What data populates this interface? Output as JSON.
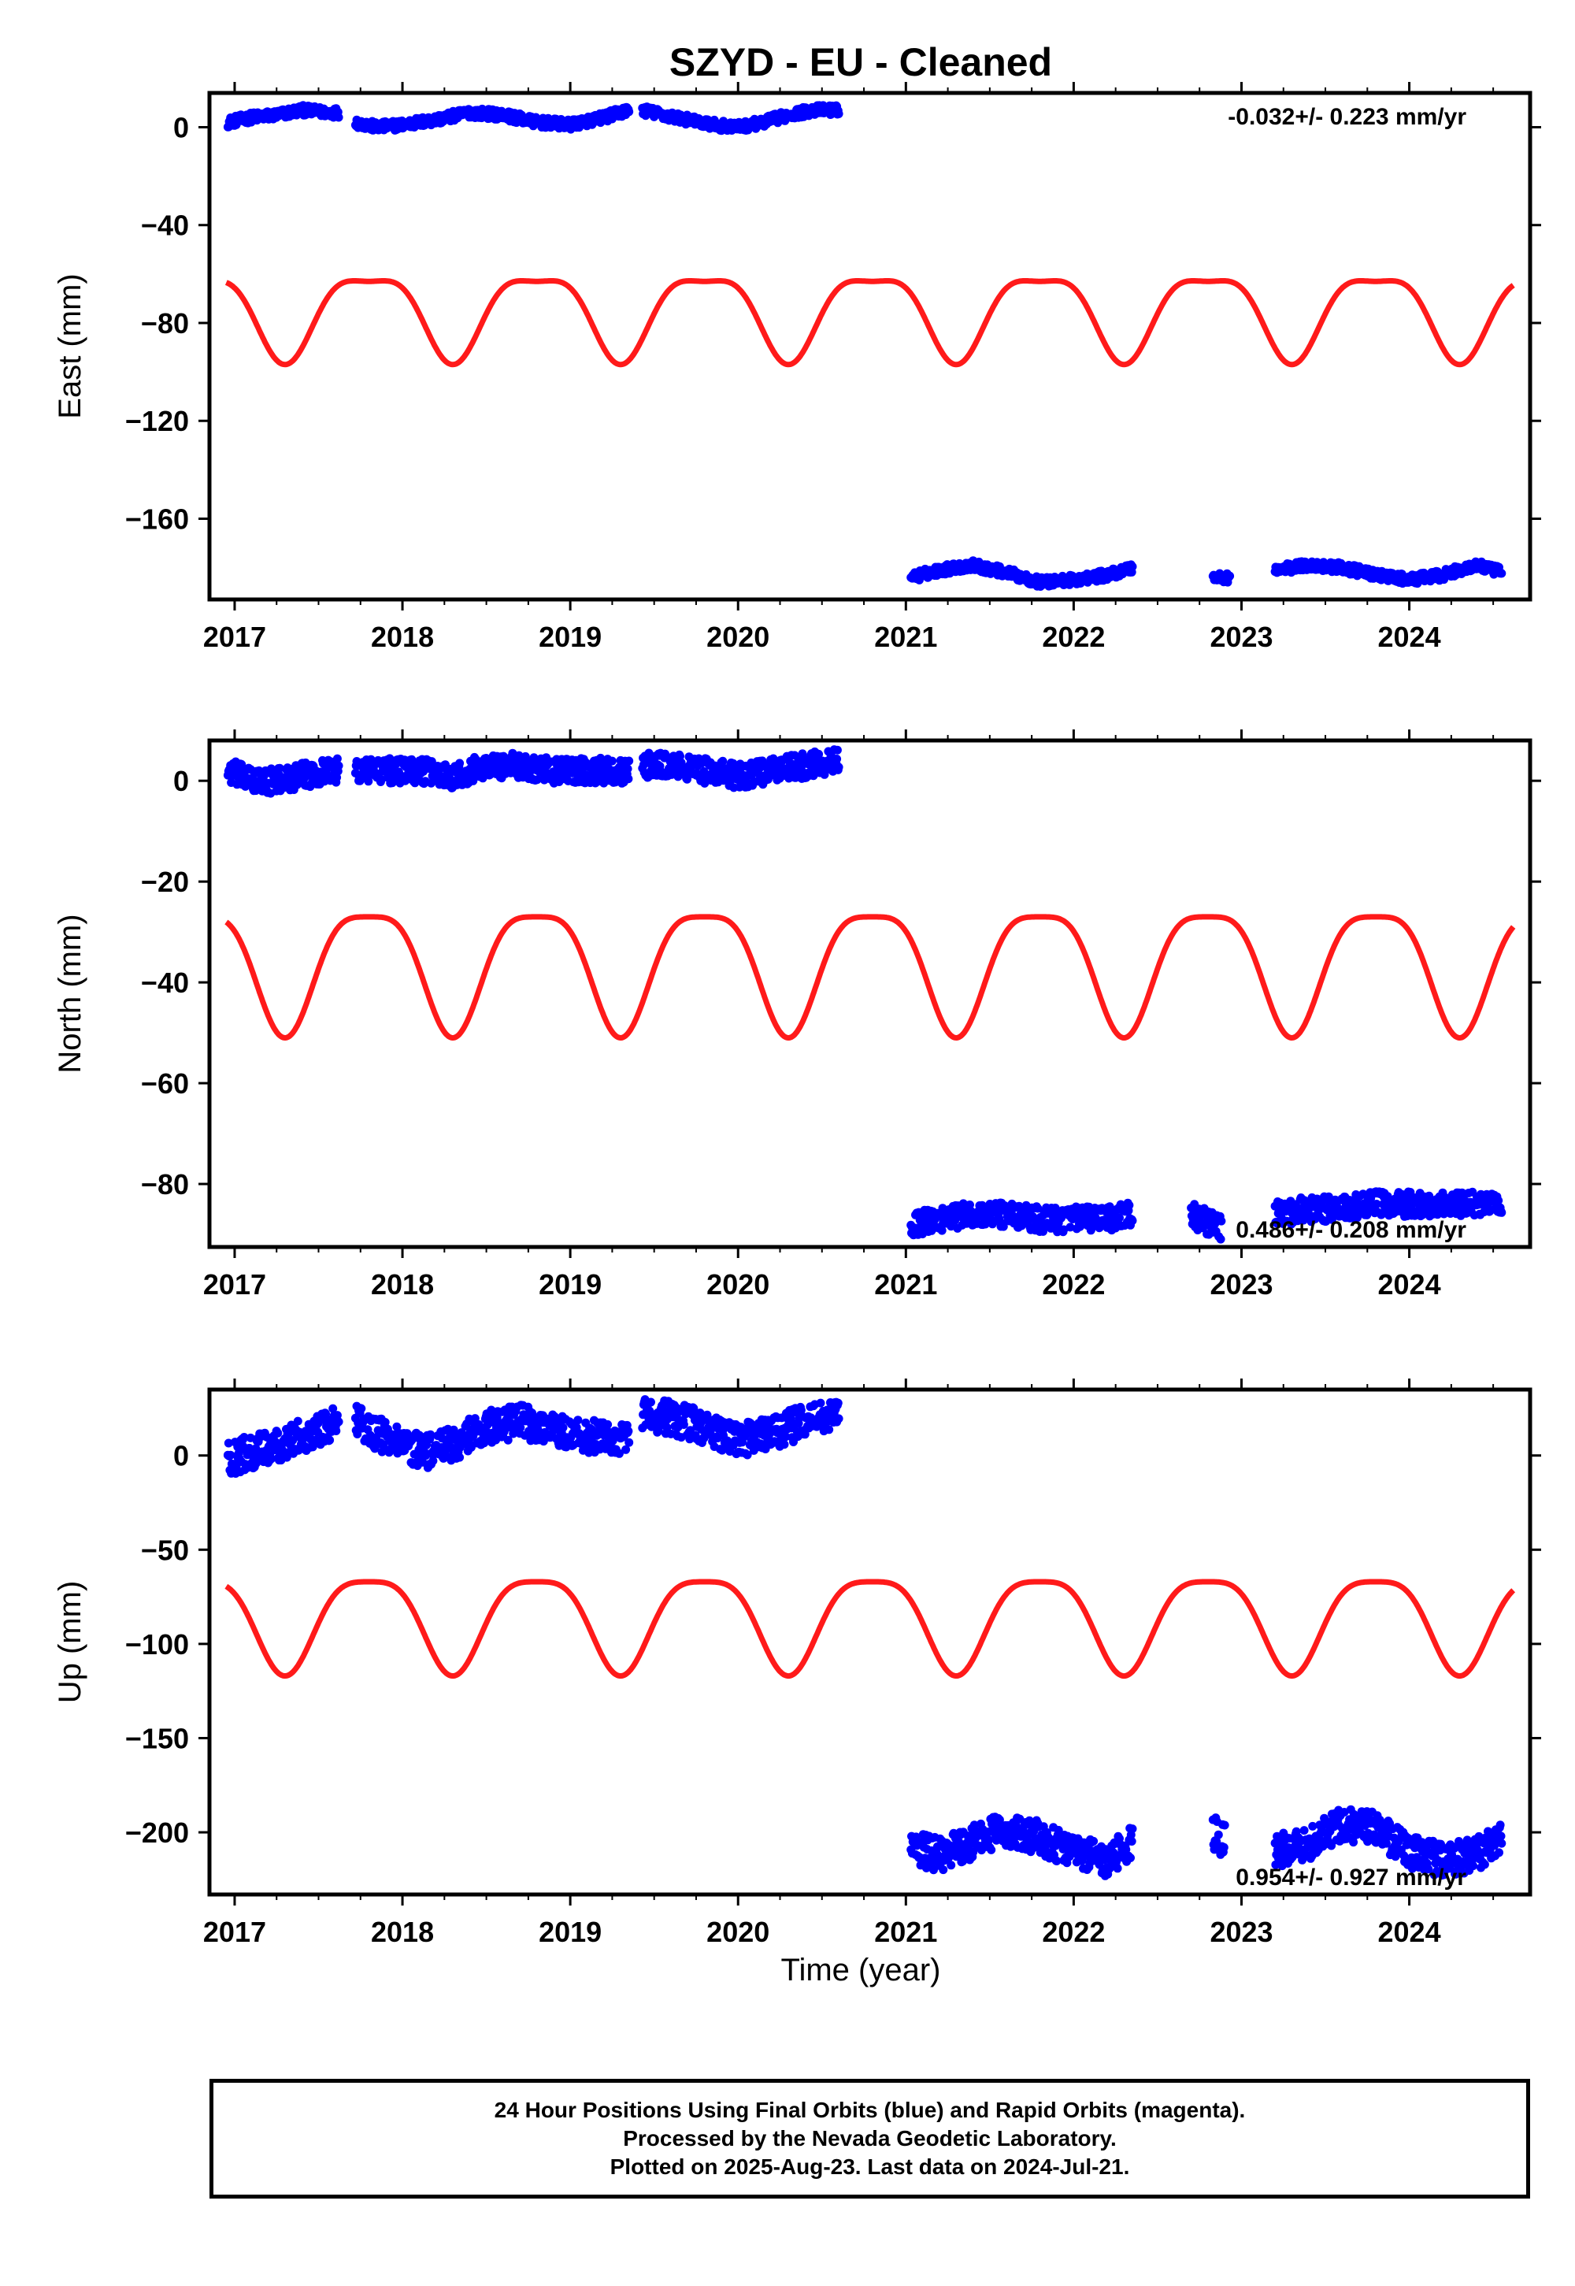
{
  "title": "SZYD  - EU - Cleaned",
  "xlabel": "Time (year)",
  "colors": {
    "final": "#0000ff",
    "model": "#ff1a1a",
    "axis": "#000000"
  },
  "caption": [
    "24 Hour Positions Using Final Orbits (blue) and Rapid Orbits (magenta).",
    "Processed by the Nevada Geodetic Laboratory.",
    "Plotted on 2025-Aug-23. Last data on 2024-Jul-21."
  ],
  "chart_data": [
    {
      "type": "scatter",
      "component": "east",
      "ylabel": "East (mm)",
      "rate_label": "-0.032+/- 0.223 mm/yr",
      "rate_position": "top-right",
      "xlim": [
        2016.85,
        2024.72
      ],
      "ylim": [
        -193,
        14
      ],
      "xticks": [
        2017,
        2018,
        2019,
        2020,
        2021,
        2022,
        2023,
        2024
      ],
      "yticks": [
        0,
        -40,
        -80,
        -120,
        -160
      ],
      "ytick_labels": [
        "0",
        "−40",
        "−80",
        "−120",
        "−160"
      ],
      "data_segments": [
        {
          "x": [
            2016.96,
            2017.1,
            2017.25,
            2017.4,
            2017.55,
            2017.62
          ],
          "y": [
            2,
            4,
            5,
            7,
            6,
            6
          ]
        },
        {
          "x": [
            2017.72,
            2017.85,
            2018.0,
            2018.2,
            2018.4,
            2018.6,
            2018.8,
            2019.0,
            2019.2,
            2019.35
          ],
          "y": [
            2,
            0,
            1,
            3,
            6,
            5,
            2,
            1,
            4,
            7
          ]
        },
        {
          "x": [
            2019.43,
            2019.55,
            2019.7,
            2019.85,
            2020.0,
            2020.15,
            2020.3,
            2020.45,
            2020.6
          ],
          "y": [
            7,
            5,
            3,
            1,
            0,
            2,
            5,
            7,
            7
          ]
        },
        {
          "x": [
            2021.03,
            2021.2,
            2021.4,
            2021.6,
            2021.8,
            2022.0,
            2022.2,
            2022.35
          ],
          "y": [
            -184,
            -181,
            -179,
            -182,
            -186,
            -185,
            -183,
            -180
          ]
        },
        {
          "x": [
            2022.83,
            2022.88,
            2022.93
          ],
          "y": [
            -184,
            -184,
            -184
          ]
        },
        {
          "x": [
            2023.2,
            2023.4,
            2023.6,
            2023.8,
            2024.0,
            2024.2,
            2024.4,
            2024.55
          ],
          "y": [
            -181,
            -179,
            -180,
            -183,
            -185,
            -183,
            -179,
            -182
          ]
        }
      ],
      "model": {
        "offset": -75,
        "a1": -17,
        "phase1": 2017.3,
        "a2": 5,
        "phase2": 2017.55,
        "jump": 0
      }
    },
    {
      "type": "scatter",
      "component": "north",
      "ylabel": "North (mm)",
      "rate_label": "0.486+/- 0.208 mm/yr",
      "rate_position": "bottom-right",
      "xlim": [
        2016.85,
        2024.72
      ],
      "ylim": [
        -92.5,
        8
      ],
      "xticks": [
        2017,
        2018,
        2019,
        2020,
        2021,
        2022,
        2023,
        2024
      ],
      "yticks": [
        0,
        -20,
        -40,
        -60,
        -80
      ],
      "ytick_labels": [
        "0",
        "−20",
        "−40",
        "−60",
        "−80"
      ],
      "data_segments": [
        {
          "x": [
            2016.96,
            2017.1,
            2017.25,
            2017.4,
            2017.55,
            2017.62
          ],
          "y": [
            2,
            0,
            0,
            1,
            2,
            2
          ]
        },
        {
          "x": [
            2017.72,
            2017.9,
            2018.1,
            2018.3,
            2018.5,
            2018.7,
            2018.9,
            2019.1,
            2019.3,
            2019.35
          ],
          "y": [
            2,
            2,
            2,
            1,
            3,
            3,
            2,
            2,
            2,
            2
          ]
        },
        {
          "x": [
            2019.43,
            2019.6,
            2019.8,
            2020.0,
            2020.2,
            2020.4,
            2020.6
          ],
          "y": [
            3,
            3,
            2,
            1,
            2,
            3,
            4
          ]
        },
        {
          "x": [
            2021.03,
            2021.2,
            2021.4,
            2021.6,
            2021.8,
            2022.0,
            2022.2,
            2022.35
          ],
          "y": [
            -88,
            -87,
            -86,
            -86,
            -87,
            -87,
            -87,
            -86
          ]
        },
        {
          "x": [
            2022.7,
            2022.88
          ],
          "y": [
            -86,
            -89
          ]
        },
        {
          "x": [
            2023.2,
            2023.4,
            2023.6,
            2023.8,
            2024.0,
            2024.2,
            2024.4,
            2024.55
          ],
          "y": [
            -86,
            -85,
            -85,
            -84,
            -84,
            -84,
            -84,
            -84
          ]
        }
      ],
      "model": {
        "offset": -36,
        "a1": -12,
        "phase1": 2017.3,
        "a2": 3,
        "phase2": 2017.55,
        "jump": 0
      }
    },
    {
      "type": "scatter",
      "component": "up",
      "ylabel": "Up (mm)",
      "rate_label": "0.954+/- 0.927 mm/yr",
      "rate_position": "bottom-right",
      "xlim": [
        2016.85,
        2024.72
      ],
      "ylim": [
        -233,
        35
      ],
      "xticks": [
        2017,
        2018,
        2019,
        2020,
        2021,
        2022,
        2023,
        2024
      ],
      "yticks": [
        0,
        -50,
        -100,
        -150,
        -200
      ],
      "ytick_labels": [
        "0",
        "−50",
        "−100",
        "−150",
        "−200"
      ],
      "data_segments": [
        {
          "x": [
            2016.96,
            2017.1,
            2017.25,
            2017.4,
            2017.55,
            2017.62
          ],
          "y": [
            -2,
            2,
            5,
            10,
            16,
            20
          ]
        },
        {
          "x": [
            2017.72,
            2017.85,
            2018.0,
            2018.15,
            2018.3,
            2018.5,
            2018.7,
            2018.9,
            2019.1,
            2019.35
          ],
          "y": [
            18,
            12,
            5,
            2,
            6,
            15,
            18,
            14,
            10,
            8
          ]
        },
        {
          "x": [
            2019.43,
            2019.6,
            2019.8,
            2020.0,
            2020.2,
            2020.4,
            2020.6
          ],
          "y": [
            22,
            20,
            15,
            8,
            12,
            18,
            22
          ]
        },
        {
          "x": [
            2021.03,
            2021.2,
            2021.4,
            2021.6,
            2021.8,
            2022.0,
            2022.2,
            2022.35
          ],
          "y": [
            -208,
            -212,
            -205,
            -198,
            -203,
            -210,
            -215,
            -205
          ]
        },
        {
          "x": [
            2022.83,
            2022.9
          ],
          "y": [
            -200,
            -205
          ]
        },
        {
          "x": [
            2023.2,
            2023.4,
            2023.6,
            2023.8,
            2024.0,
            2024.2,
            2024.4,
            2024.55
          ],
          "y": [
            -210,
            -206,
            -196,
            -198,
            -210,
            -215,
            -212,
            -202
          ]
        }
      ],
      "model": {
        "offset": -86,
        "a1": -25,
        "phase1": 2017.3,
        "a2": 6,
        "phase2": 2017.55,
        "jump": 0
      }
    }
  ]
}
